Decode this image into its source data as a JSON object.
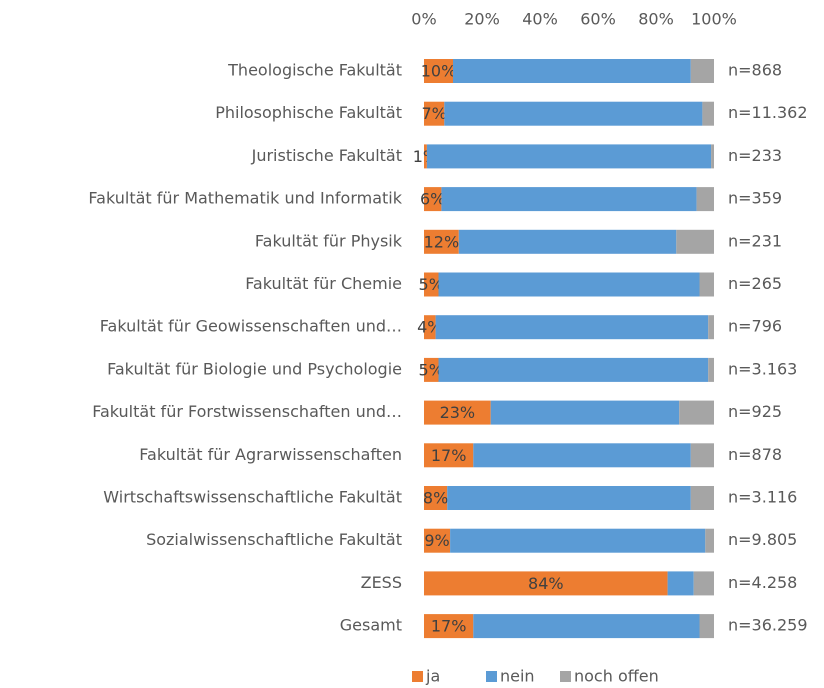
{
  "chart_data": {
    "type": "stacked_bar_horizontal",
    "categories": [
      "Theologische Fakultät",
      "Philosophische Fakultät",
      "Juristische Fakultät",
      "Fakultät für Mathematik und Informatik",
      "Fakultät für Physik",
      "Fakultät für Chemie",
      "Fakultät für Geowissenschaften und…",
      "Fakultät für Biologie und Psychologie",
      "Fakultät für Forstwissenschaften und…",
      "Fakultät für Agrarwissenschaften",
      "Wirtschaftswissenschaftliche Fakultät",
      "Sozialwissenschaftliche Fakultät",
      "ZESS",
      "Gesamt"
    ],
    "series": [
      {
        "name": "ja",
        "color": "#ed7d31",
        "values": [
          10,
          7,
          1,
          6,
          12,
          5,
          4,
          5,
          23,
          17,
          8,
          9,
          84,
          17
        ],
        "value_labels": [
          "10%",
          "7%",
          "1%",
          "6%",
          "12%",
          "5%",
          "4%",
          "5%",
          "23%",
          "17%",
          "8%",
          "9%",
          "84%",
          "17%"
        ]
      },
      {
        "name": "nein",
        "color": "#5b9bd5",
        "values": [
          82,
          89,
          98,
          88,
          75,
          90,
          94,
          93,
          65,
          75,
          84,
          88,
          9,
          78
        ]
      },
      {
        "name": "noch offen",
        "color": "#a5a5a5",
        "values": [
          8,
          4,
          1,
          6,
          13,
          5,
          2,
          2,
          12,
          8,
          8,
          3,
          7,
          5
        ]
      }
    ],
    "n_labels": [
      "n=868",
      "n=11.362",
      "n=233",
      "n=359",
      "n=231",
      "n=265",
      "n=796",
      "n=3.163",
      "n=925",
      "n=878",
      "n=3.116",
      "n=9.805",
      "n=4.258",
      "n=36.259"
    ],
    "xlim": [
      0,
      100
    ],
    "xticks": [
      {
        "value": 0,
        "label": "0%"
      },
      {
        "value": 20,
        "label": "20%"
      },
      {
        "value": 40,
        "label": "40%"
      },
      {
        "value": 60,
        "label": "60%"
      },
      {
        "value": 80,
        "label": "80%"
      },
      {
        "value": 100,
        "label": "100%"
      }
    ],
    "legend": "bottom"
  }
}
